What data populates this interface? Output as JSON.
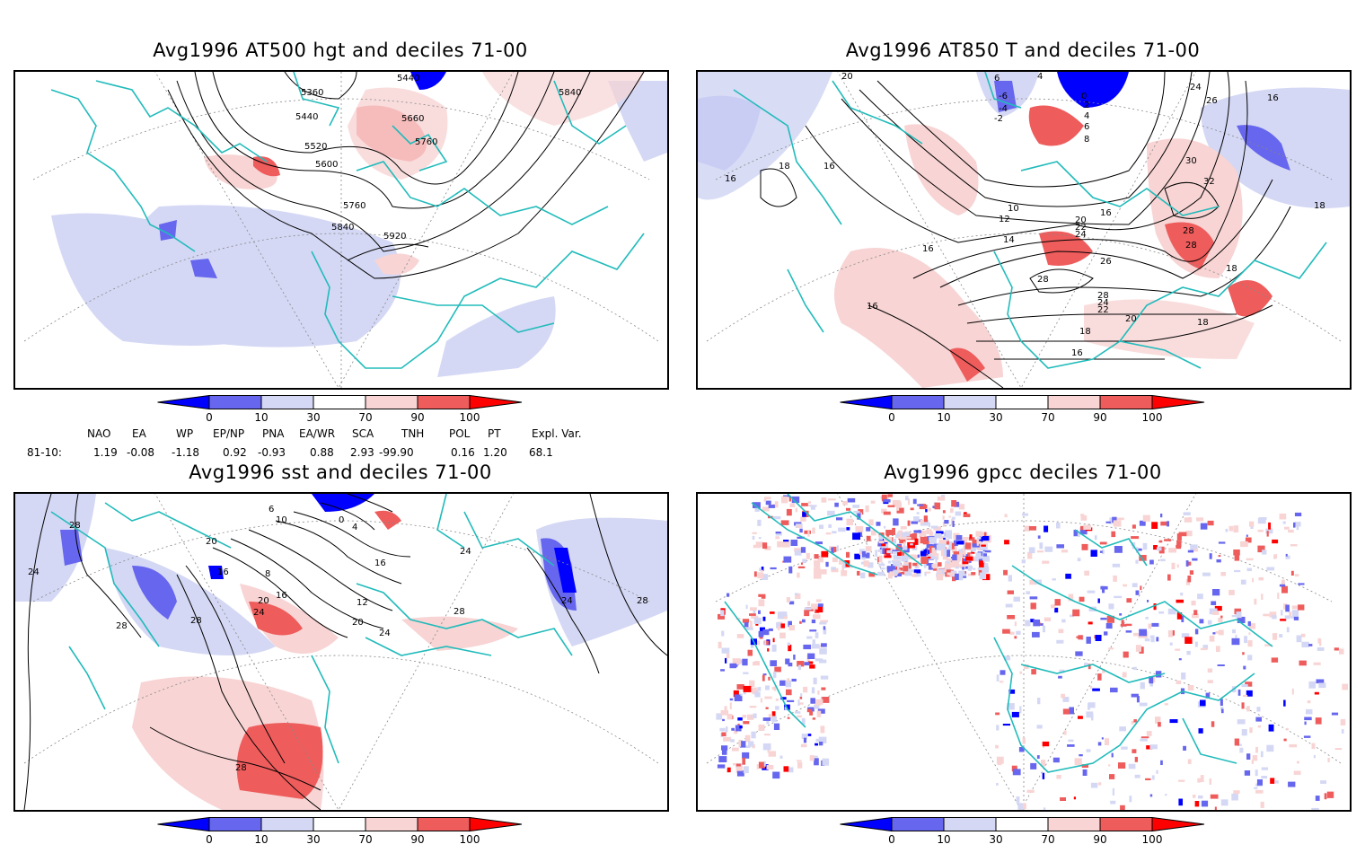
{
  "panels": [
    {
      "title": "Avg1996 AT500 hgt and deciles 71-00",
      "contour_labels": [
        "5440",
        "5360",
        "5440",
        "5520",
        "5600",
        "5660",
        "5760",
        "5760",
        "5840",
        "5840",
        "5920"
      ]
    },
    {
      "title": "Avg1996 AT850 T and deciles 71-00",
      "contour_labels": [
        "20",
        "6",
        "4",
        "-6",
        "-4",
        "-2",
        "0",
        "2",
        "4",
        "6",
        "8",
        "24",
        "26",
        "16",
        "18",
        "16",
        "16",
        "30",
        "32",
        "18",
        "10",
        "12",
        "14",
        "16",
        "20",
        "22",
        "24",
        "26",
        "28",
        "28",
        "28",
        "16",
        "18",
        "28",
        "24",
        "22",
        "20",
        "18",
        "16",
        "16",
        "18"
      ]
    },
    {
      "title": "Avg1996 sst and deciles 71-00",
      "contour_labels": [
        "28",
        "24",
        "20",
        "16",
        "8",
        "12",
        "16",
        "20",
        "24",
        "28",
        "24",
        "28",
        "24",
        "28",
        "28",
        "0",
        "4",
        "6",
        "10",
        "16",
        "20",
        "24",
        "28"
      ]
    },
    {
      "title": "Avg1996 gpcc deciles 71-00",
      "contour_labels": []
    }
  ],
  "colorbar": {
    "ticks": [
      "0",
      "10",
      "30",
      "70",
      "90",
      "100"
    ],
    "colors": [
      "#0000ff",
      "#6666ee",
      "#d4d8f4",
      "#ffffff",
      "#f8d4d4",
      "#ee5c5c",
      "#ff0000"
    ]
  },
  "indices": {
    "headers": [
      "NAO",
      "EA",
      "WP",
      "EP/NP",
      "PNA",
      "EA/WR",
      "SCA",
      "TNH",
      "POL",
      "PT",
      "Expl. Var."
    ],
    "row_label": "81-10:",
    "values": [
      "1.19",
      "-0.08",
      "-1.18",
      "0.92",
      "-0.93",
      "0.88",
      "2.93",
      "-99.90",
      "0.16",
      "1.20",
      "68.1"
    ]
  },
  "colors": {
    "coast": "#22bbbb",
    "pos": "#ee5c5c",
    "pos_light": "#f8d4d4",
    "neg": "#6666ee",
    "neg_light": "#d4d8f4"
  }
}
